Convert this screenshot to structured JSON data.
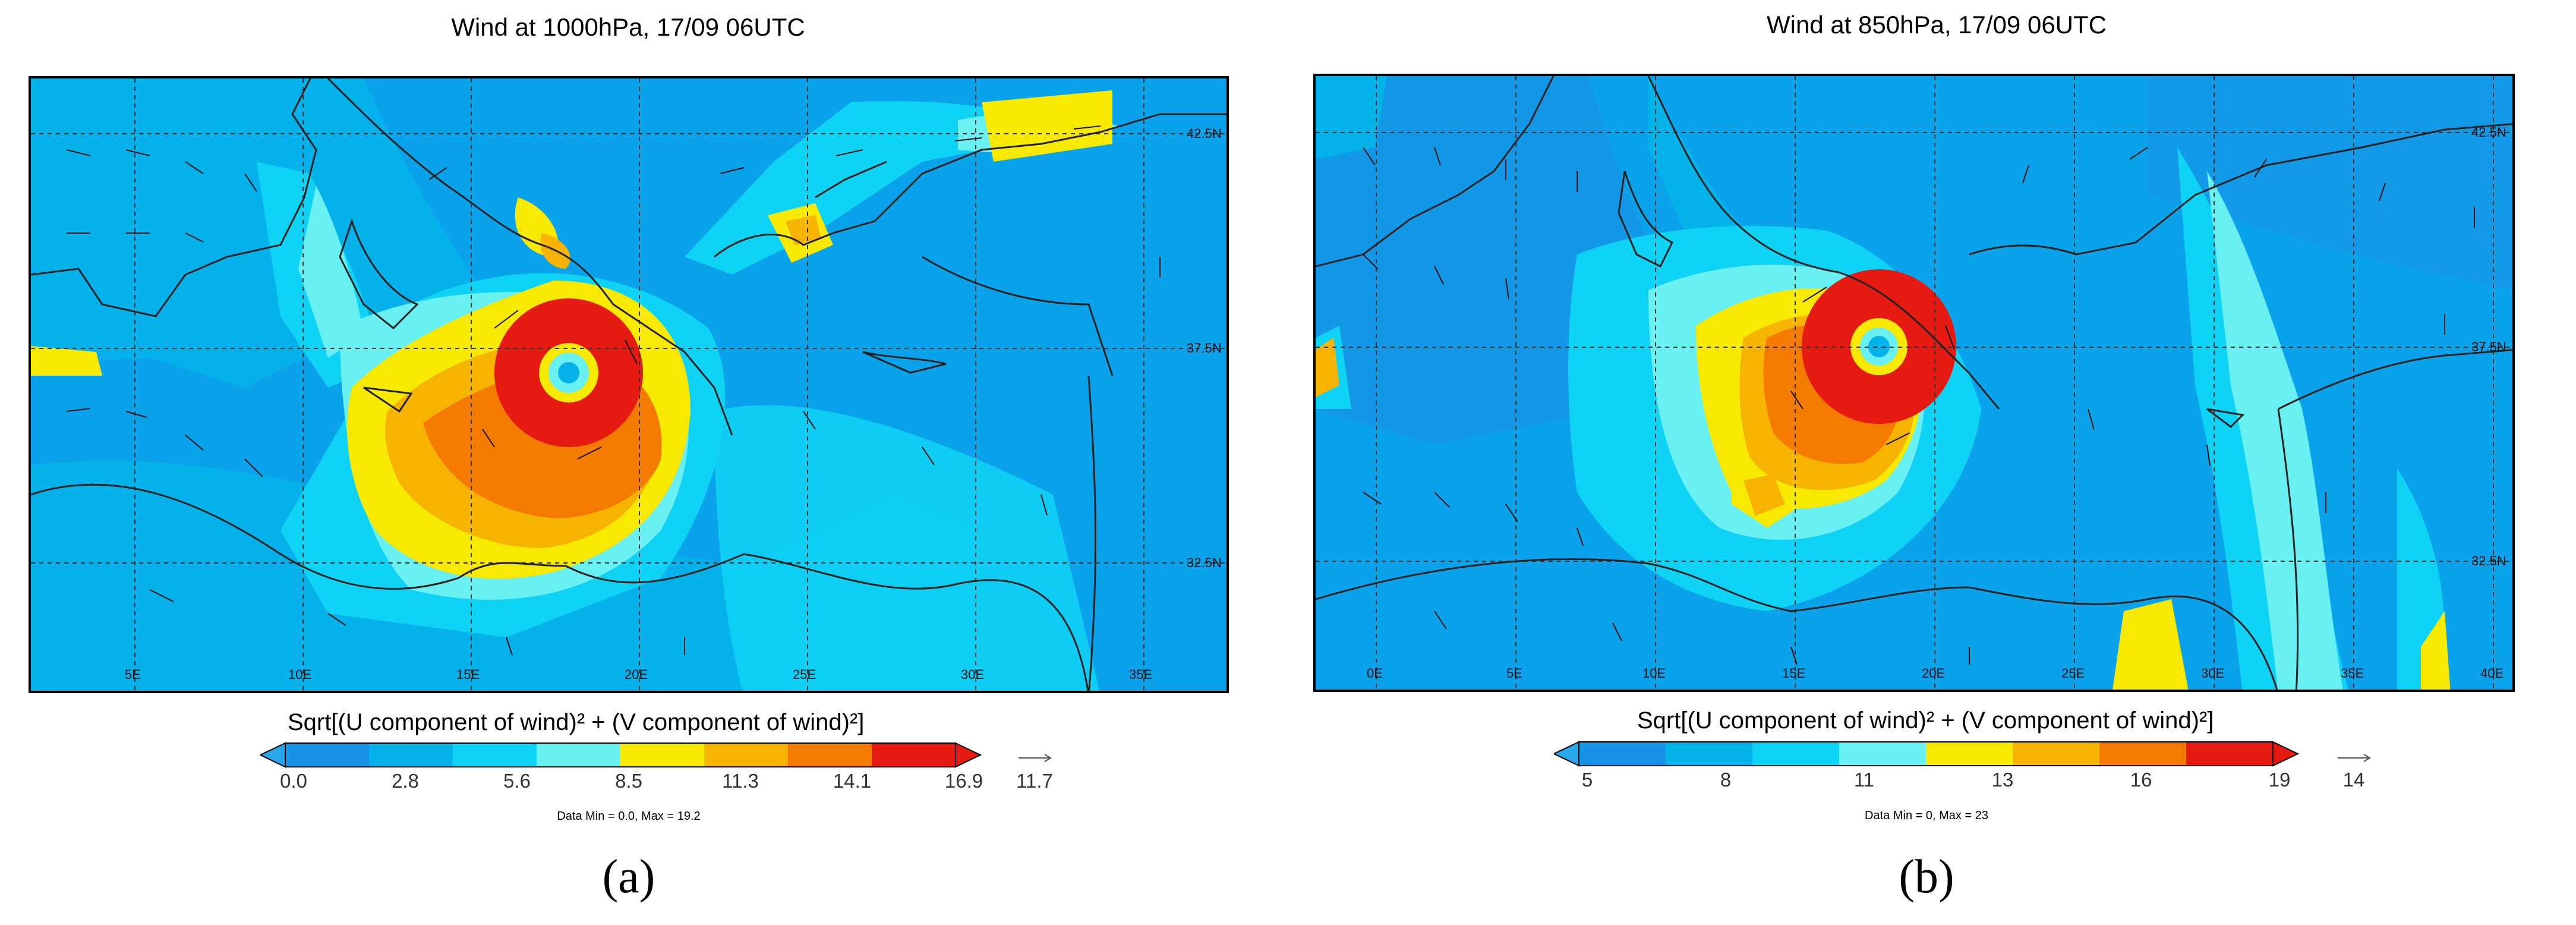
{
  "panels": [
    {
      "caption": "(a)",
      "title": "Wind at 1000hPa, 17/09 06UTC",
      "colorbar_title": "Sqrt[(U component of wind)² + (V component of wind)²]",
      "colorbar_ticks": [
        "0.0",
        "2.8",
        "5.6",
        "8.5",
        "11.3",
        "14.1",
        "16.9"
      ],
      "vector_ref": "11.7",
      "data_range": "Data Min = 0.0, Max = 19.2",
      "lon_labels": [
        "5E",
        "10E",
        "15E",
        "20E",
        "25E",
        "30E",
        "35E"
      ],
      "lat_labels": [
        "42.5N",
        "37.5N",
        "32.5N"
      ]
    },
    {
      "caption": "(b)",
      "title": "Wind at 850hPa, 17/09 06UTC",
      "colorbar_title": "Sqrt[(U component of wind)² + (V component of wind)²]",
      "colorbar_ticks": [
        "5",
        "8",
        "11",
        "13",
        "16",
        "19"
      ],
      "vector_ref": "14",
      "data_range": "Data Min = 0, Max = 23",
      "lon_labels": [
        "0E",
        "5E",
        "10E",
        "15E",
        "20E",
        "25E",
        "30E",
        "35E",
        "40E"
      ],
      "lat_labels": [
        "42.5N",
        "37.5N",
        "32.5N"
      ]
    }
  ],
  "colors": {
    "scale": [
      "#1793e6",
      "#04b2ea",
      "#0fd3f4",
      "#68f0f2",
      "#f7ea00",
      "#f6b300",
      "#f57a00",
      "#e51a10"
    ],
    "left_arrow": "#2aa8ee",
    "right_arrow": "#e51a10",
    "background": "#0aa2ea"
  }
}
